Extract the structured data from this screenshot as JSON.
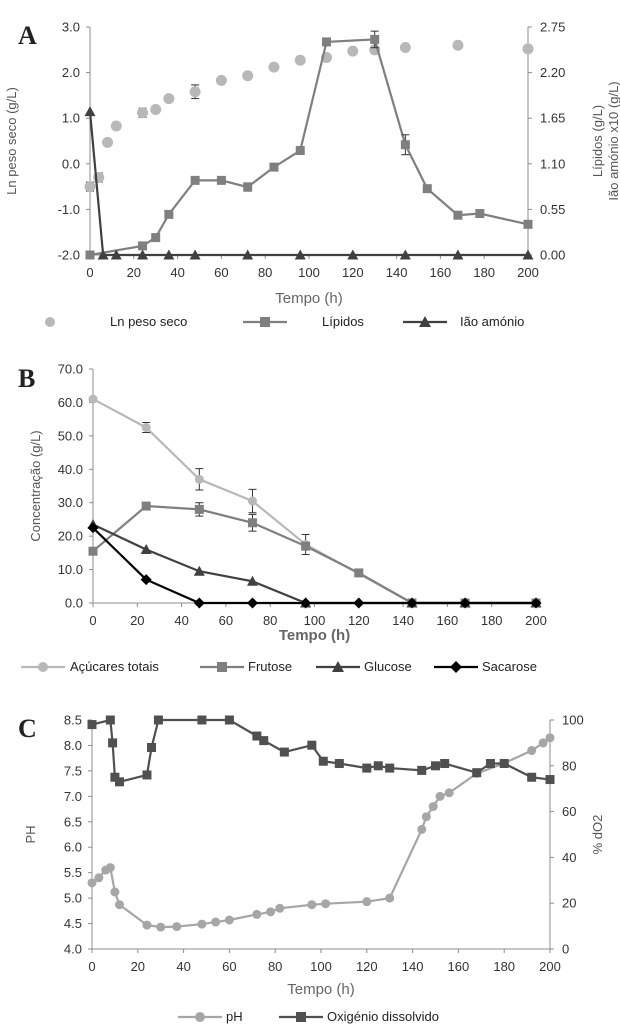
{
  "chart_data": [
    {
      "type": "line",
      "panel": "A",
      "title": "",
      "xlabel": "Tempo (h)",
      "ylabel": "Ln peso seco (g/L)",
      "y2label_lines": [
        "Lípidos (g/L)",
        "Ião amónio x10 (g/L)"
      ],
      "xlim": [
        0,
        200
      ],
      "ylim": [
        -2,
        3
      ],
      "y2lim": [
        0,
        2.75
      ],
      "xticks": [
        "0",
        "20",
        "40",
        "60",
        "80",
        "100",
        "120",
        "140",
        "160",
        "180",
        "200"
      ],
      "yticks": [
        "-2.0",
        "-1.0",
        "0.0",
        "1.0",
        "2.0",
        "3.0"
      ],
      "y2ticks": [
        "0.00",
        "0.55",
        "1.10",
        "1.65",
        "2.20",
        "2.75"
      ],
      "legend_position": "bottom",
      "series": [
        {
          "name": "Ln peso seco",
          "axis": "left",
          "marker": "circle",
          "line": false,
          "color": "#b8b8b8",
          "x": [
            0,
            4,
            8,
            12,
            24,
            30,
            36,
            48,
            60,
            72,
            84,
            96,
            108,
            120,
            130,
            144,
            168,
            200
          ],
          "y": [
            -0.5,
            -0.3,
            0.47,
            0.83,
            1.12,
            1.19,
            1.43,
            1.58,
            1.83,
            1.93,
            2.12,
            2.27,
            2.33,
            2.47,
            2.5,
            2.55,
            2.6,
            2.52
          ],
          "err": [
            0.1,
            0.1,
            0,
            0,
            0.1,
            0,
            0,
            0.15,
            0,
            0,
            0,
            0,
            0,
            0,
            0,
            0,
            0,
            0
          ]
        },
        {
          "name": "Lípidos",
          "axis": "right",
          "marker": "square",
          "line": true,
          "color": "#7f7f7f",
          "x": [
            0,
            24,
            30,
            36,
            48,
            60,
            72,
            84,
            96,
            108,
            130,
            144,
            154,
            168,
            178,
            200
          ],
          "y": [
            0,
            0.11,
            0.21,
            0.49,
            0.9,
            0.9,
            0.82,
            1.06,
            1.26,
            2.57,
            2.6,
            1.33,
            0.8,
            0.48,
            0.5,
            0.37
          ],
          "err": [
            0,
            0,
            0,
            0,
            0,
            0,
            0.05,
            0,
            0,
            0,
            0.1,
            0.12,
            0,
            0,
            0,
            0
          ]
        },
        {
          "name": "Ião amónio",
          "axis": "right",
          "marker": "triangle",
          "line": true,
          "color": "#404040",
          "x": [
            0,
            6,
            12,
            24,
            36,
            48,
            72,
            96,
            120,
            144,
            168,
            200
          ],
          "y": [
            1.73,
            0,
            0,
            0,
            0,
            0,
            0,
            0,
            0,
            0,
            0,
            0
          ],
          "err": [
            0,
            0,
            0,
            0,
            0,
            0,
            0,
            0,
            0,
            0,
            0,
            0
          ]
        }
      ]
    },
    {
      "type": "line",
      "panel": "B",
      "title": "",
      "xlabel": "Tempo (h)",
      "ylabel": "Concentração (g/L)",
      "xlim": [
        0,
        200
      ],
      "ylim": [
        0,
        70
      ],
      "xticks": [
        "0",
        "20",
        "40",
        "60",
        "80",
        "100",
        "120",
        "140",
        "160",
        "180",
        "200"
      ],
      "yticks": [
        "0.0",
        "10.0",
        "20.0",
        "30.0",
        "40.0",
        "50.0",
        "60.0",
        "70.0"
      ],
      "legend_position": "bottom",
      "series": [
        {
          "name": "Açúcares totais",
          "marker": "circle",
          "line": true,
          "color": "#b8b8b8",
          "x": [
            0,
            24,
            48,
            72,
            96,
            144,
            168,
            200
          ],
          "y": [
            61,
            52.5,
            37,
            30.5,
            17.5,
            0,
            0,
            0
          ],
          "err": [
            0,
            1.5,
            3.2,
            3.5,
            3.0,
            0,
            0,
            0
          ]
        },
        {
          "name": "Frutose",
          "marker": "square",
          "line": true,
          "color": "#7f7f7f",
          "x": [
            0,
            24,
            48,
            72,
            96,
            120,
            144,
            168,
            200
          ],
          "y": [
            15.5,
            29,
            28,
            24,
            17,
            9,
            0,
            0,
            0
          ],
          "err": [
            0,
            0,
            2.0,
            2.5,
            0,
            0,
            0,
            0,
            0
          ]
        },
        {
          "name": "Glucose",
          "marker": "triangle",
          "line": true,
          "color": "#404040",
          "x": [
            0,
            24,
            48,
            72,
            96,
            144,
            168,
            200
          ],
          "y": [
            23.5,
            16,
            9.5,
            6.5,
            0,
            0,
            0,
            0
          ],
          "err": [
            0,
            0,
            0,
            0,
            0,
            0,
            0,
            0
          ]
        },
        {
          "name": "Sacarose",
          "marker": "diamond",
          "line": true,
          "color": "#000000",
          "x": [
            0,
            24,
            48,
            72,
            96,
            120,
            144,
            168,
            200
          ],
          "y": [
            22.5,
            7,
            0,
            0,
            0,
            0,
            0,
            0,
            0
          ],
          "err": [
            0,
            0,
            0,
            0,
            0,
            0,
            0,
            0,
            0
          ]
        }
      ]
    },
    {
      "type": "line",
      "panel": "C",
      "title": "",
      "xlabel": "Tempo (h)",
      "ylabel": "PH",
      "y2label": "% dO2",
      "xlim": [
        0,
        200
      ],
      "ylim": [
        4,
        8.5
      ],
      "y2lim": [
        0,
        100
      ],
      "xticks": [
        "0",
        "20",
        "40",
        "60",
        "80",
        "100",
        "120",
        "140",
        "160",
        "180",
        "200"
      ],
      "yticks": [
        "4.0",
        "4.5",
        "5.0",
        "5.5",
        "6.0",
        "6.5",
        "7.0",
        "7.5",
        "8.0",
        "8.5"
      ],
      "y2ticks": [
        "0",
        "20",
        "40",
        "60",
        "80",
        "100"
      ],
      "legend_position": "bottom",
      "series": [
        {
          "name": "pH",
          "axis": "left",
          "marker": "circle",
          "line": true,
          "color": "#a6a6a6",
          "x": [
            0,
            3,
            6,
            8,
            10,
            12,
            24,
            30,
            37,
            48,
            54,
            60,
            72,
            78,
            82,
            96,
            102,
            120,
            130,
            144,
            146,
            149,
            152,
            156,
            168,
            180,
            192,
            197,
            200
          ],
          "y": [
            5.3,
            5.4,
            5.55,
            5.6,
            5.12,
            4.87,
            4.47,
            4.43,
            4.44,
            4.49,
            4.53,
            4.57,
            4.68,
            4.73,
            4.8,
            4.87,
            4.89,
            4.93,
            5.0,
            6.35,
            6.6,
            6.8,
            7.0,
            7.07,
            7.45,
            7.65,
            7.9,
            8.05,
            8.15
          ],
          "err": []
        },
        {
          "name": "Oxigénio dissolvido",
          "axis": "right",
          "marker": "square",
          "line": true,
          "color": "#505050",
          "x": [
            0,
            8,
            9,
            10,
            12,
            24,
            26,
            29,
            48,
            60,
            72,
            75,
            84,
            96,
            101,
            108,
            120,
            125,
            130,
            144,
            150,
            154,
            168,
            174,
            180,
            192,
            200
          ],
          "y": [
            98,
            100,
            90,
            75,
            73,
            76,
            88,
            100,
            100,
            100,
            93,
            91,
            86,
            89,
            82,
            81,
            79,
            80,
            79,
            78,
            80,
            81,
            77,
            81,
            81,
            75,
            74
          ],
          "err": []
        }
      ]
    }
  ]
}
